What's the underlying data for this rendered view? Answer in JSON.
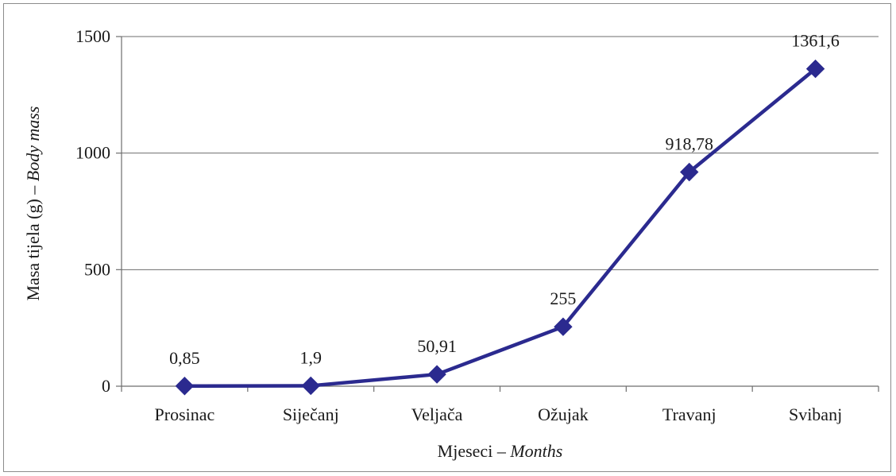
{
  "chart_data": {
    "type": "line",
    "categories": [
      "Prosinac",
      "Siječanj",
      "Veljača",
      "Ožujak",
      "Travanj",
      "Svibanj"
    ],
    "series": [
      {
        "values": [
          0.85,
          1.9,
          50.91,
          255,
          918.78,
          1361.6
        ],
        "data_labels": [
          "0,85",
          "1,9",
          "50,91",
          "255",
          "918,78",
          "1361,6"
        ],
        "color": "#2b2a8f",
        "marker": "diamond"
      }
    ],
    "xlabel": {
      "main": "Mjeseci – ",
      "italic": "Months"
    },
    "ylabel": {
      "main": "Masa tijela (g) – ",
      "italic": "Body mass"
    },
    "yticks": [
      "0",
      "500",
      "1000",
      "1500"
    ],
    "ylim": [
      0,
      1500
    ],
    "grid": "horizontal",
    "legend": "none"
  }
}
